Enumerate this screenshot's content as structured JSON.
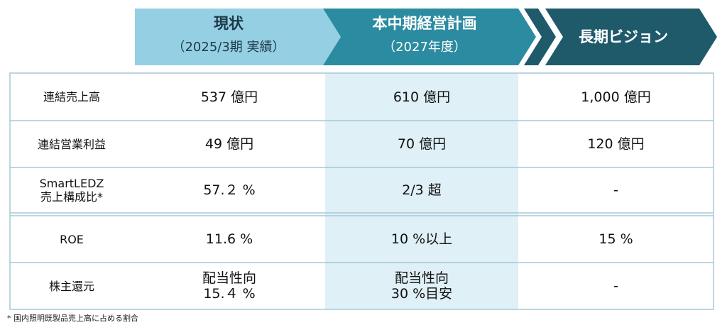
{
  "header": {
    "columns": [
      {
        "title": "現状",
        "subtitle": "（2025/3期 実績）"
      },
      {
        "title": "本中期経営計画",
        "subtitle": "（2027年度）"
      },
      {
        "title": "長期ビジョン"
      }
    ]
  },
  "table": {
    "rows": [
      {
        "label": [
          "連結売上高"
        ],
        "cells": [
          [
            "537 億円"
          ],
          [
            "610 億円"
          ],
          [
            "1,000 億円"
          ]
        ]
      },
      {
        "label": [
          "連結営業利益"
        ],
        "cells": [
          [
            "49 億円"
          ],
          [
            "70 億円"
          ],
          [
            "120 億円"
          ]
        ]
      },
      {
        "label": [
          "SmartLEDZ",
          "売上構成比*"
        ],
        "cells": [
          [
            "57.２ %"
          ],
          [
            "2/3 超"
          ],
          [
            "-"
          ]
        ]
      },
      {
        "label": [
          "ROE"
        ],
        "cells": [
          [
            "11.6 %"
          ],
          [
            "10 %以上"
          ],
          [
            "15 %"
          ]
        ]
      },
      {
        "label": [
          "株主還元"
        ],
        "cells": [
          [
            "配当性向",
            "15.４ %"
          ],
          [
            "配当性向",
            "30 %目安"
          ],
          [
            "-"
          ]
        ]
      }
    ]
  },
  "footnote": "* 国内照明既製品売上高に占める割合"
}
